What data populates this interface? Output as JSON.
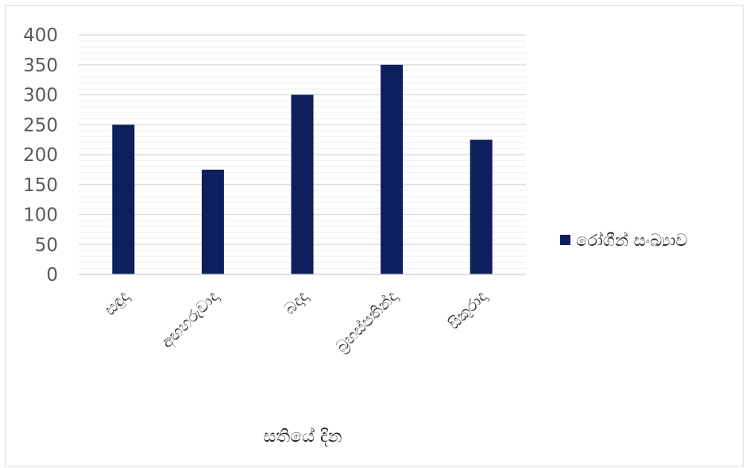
{
  "chart_data": {
    "type": "bar",
    "categories": [
      "සඳුදා",
      "අඟහරුවාදා",
      "බදාදා",
      "බ්‍රහස්පතින්දා",
      "සිකුරාදා"
    ],
    "series": [
      {
        "name": "රෝගීන් සංඛ්‍යාව",
        "values": [
          250,
          175,
          300,
          350,
          225
        ],
        "color": "#0d1f5c"
      }
    ],
    "xlabel": "සතියේ දින",
    "ylabel": "",
    "ylim": [
      0,
      400
    ],
    "yticks": [
      "0",
      "50",
      "100",
      "150",
      "200",
      "250",
      "300",
      "350",
      "400"
    ],
    "grid": true,
    "legend_position": "right"
  }
}
